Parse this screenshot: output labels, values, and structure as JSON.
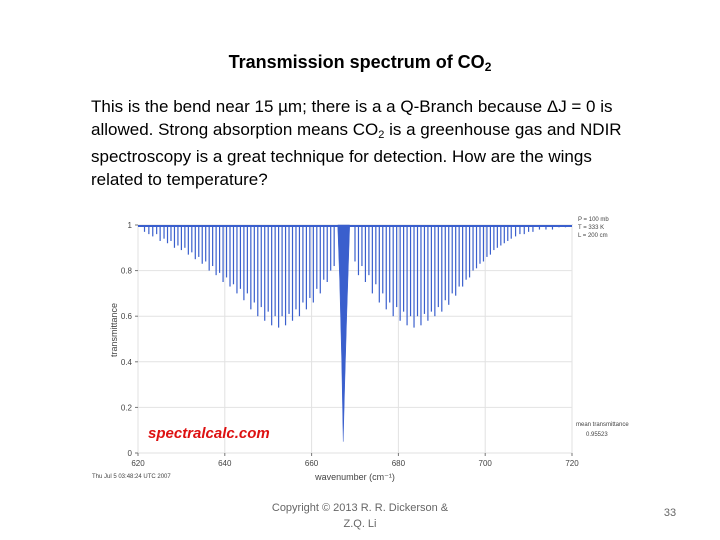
{
  "slide": {
    "title_main": "Transmission spectrum of CO",
    "title_sub": "2",
    "para_1": "This is the bend near 15 ",
    "mu": "µ",
    "para_2": "m; there is a a Q-Branch because ",
    "delta": "Δ",
    "para_3": "J = 0 is allowed.  Strong absorption means CO",
    "para_sub": "2",
    "para_4": " is a greenhouse gas and NDIR spectroscopy is a great technique for detection.  How are the wings related to temperature?",
    "footer_line1": "Copyright © 2013  R. R. Dickerson &",
    "footer_line2": "Z.Q. Li",
    "page_number": "33"
  },
  "chart_data": {
    "type": "line",
    "xlabel": "wavenumber (cm⁻¹)",
    "ylabel": "transmittance",
    "xlim": [
      620,
      720
    ],
    "ylim": [
      0,
      1
    ],
    "xticks": [
      620,
      640,
      660,
      680,
      700,
      720
    ],
    "yticks": [
      0,
      0.2,
      0.4,
      0.6,
      0.8,
      1
    ],
    "xtick_labels": [
      "620",
      "640",
      "660",
      "680",
      "700",
      "720"
    ],
    "ytick_labels": [
      "0",
      "0.2",
      "0.4",
      "0.6",
      "0.8",
      "1"
    ],
    "line_color": "#3a5fcd",
    "watermark": "spectralcalc.com",
    "watermark_color": "#dd1111",
    "params": [
      "P = 100 mb",
      "T = 333 K",
      "L = 200 cm"
    ],
    "mean_label_1": "mean transmittance",
    "mean_label_2": "0.95523",
    "timestamp": "Thu Jul  5 03:48:24 UTC 2007",
    "q_branch": {
      "x": 667.4,
      "min_y": 0.05
    },
    "lines": [
      {
        "x": 621.5,
        "y": 0.97
      },
      {
        "x": 622.5,
        "y": 0.96
      },
      {
        "x": 623.4,
        "y": 0.95
      },
      {
        "x": 624.3,
        "y": 0.96
      },
      {
        "x": 625.1,
        "y": 0.93
      },
      {
        "x": 626.0,
        "y": 0.94
      },
      {
        "x": 626.8,
        "y": 0.92
      },
      {
        "x": 627.6,
        "y": 0.93
      },
      {
        "x": 628.4,
        "y": 0.9
      },
      {
        "x": 629.2,
        "y": 0.91
      },
      {
        "x": 630.0,
        "y": 0.89
      },
      {
        "x": 630.8,
        "y": 0.9
      },
      {
        "x": 631.6,
        "y": 0.87
      },
      {
        "x": 632.4,
        "y": 0.88
      },
      {
        "x": 633.2,
        "y": 0.85
      },
      {
        "x": 634.0,
        "y": 0.86
      },
      {
        "x": 634.8,
        "y": 0.83
      },
      {
        "x": 635.6,
        "y": 0.84
      },
      {
        "x": 636.4,
        "y": 0.8
      },
      {
        "x": 637.2,
        "y": 0.82
      },
      {
        "x": 638.0,
        "y": 0.78
      },
      {
        "x": 638.8,
        "y": 0.79
      },
      {
        "x": 639.6,
        "y": 0.75
      },
      {
        "x": 640.4,
        "y": 0.77
      },
      {
        "x": 641.2,
        "y": 0.73
      },
      {
        "x": 642.0,
        "y": 0.74
      },
      {
        "x": 642.8,
        "y": 0.7
      },
      {
        "x": 643.6,
        "y": 0.72
      },
      {
        "x": 644.4,
        "y": 0.67
      },
      {
        "x": 645.2,
        "y": 0.7
      },
      {
        "x": 646.0,
        "y": 0.63
      },
      {
        "x": 646.8,
        "y": 0.66
      },
      {
        "x": 647.6,
        "y": 0.6
      },
      {
        "x": 648.4,
        "y": 0.64
      },
      {
        "x": 649.2,
        "y": 0.58
      },
      {
        "x": 650.0,
        "y": 0.62
      },
      {
        "x": 650.8,
        "y": 0.56
      },
      {
        "x": 651.6,
        "y": 0.6
      },
      {
        "x": 652.4,
        "y": 0.55
      },
      {
        "x": 653.2,
        "y": 0.6
      },
      {
        "x": 654.0,
        "y": 0.56
      },
      {
        "x": 654.8,
        "y": 0.61
      },
      {
        "x": 655.6,
        "y": 0.58
      },
      {
        "x": 656.4,
        "y": 0.63
      },
      {
        "x": 657.2,
        "y": 0.6
      },
      {
        "x": 658.0,
        "y": 0.66
      },
      {
        "x": 658.8,
        "y": 0.63
      },
      {
        "x": 659.6,
        "y": 0.68
      },
      {
        "x": 660.4,
        "y": 0.66
      },
      {
        "x": 661.2,
        "y": 0.72
      },
      {
        "x": 662.0,
        "y": 0.7
      },
      {
        "x": 662.8,
        "y": 0.76
      },
      {
        "x": 663.6,
        "y": 0.75
      },
      {
        "x": 664.4,
        "y": 0.8
      },
      {
        "x": 665.2,
        "y": 0.82
      },
      {
        "x": 670.0,
        "y": 0.84
      },
      {
        "x": 670.8,
        "y": 0.78
      },
      {
        "x": 671.6,
        "y": 0.82
      },
      {
        "x": 672.4,
        "y": 0.75
      },
      {
        "x": 673.2,
        "y": 0.78
      },
      {
        "x": 674.0,
        "y": 0.7
      },
      {
        "x": 674.8,
        "y": 0.74
      },
      {
        "x": 675.6,
        "y": 0.66
      },
      {
        "x": 676.4,
        "y": 0.7
      },
      {
        "x": 677.2,
        "y": 0.63
      },
      {
        "x": 678.0,
        "y": 0.66
      },
      {
        "x": 678.8,
        "y": 0.6
      },
      {
        "x": 679.6,
        "y": 0.64
      },
      {
        "x": 680.4,
        "y": 0.58
      },
      {
        "x": 681.2,
        "y": 0.62
      },
      {
        "x": 682.0,
        "y": 0.56
      },
      {
        "x": 682.8,
        "y": 0.6
      },
      {
        "x": 683.6,
        "y": 0.55
      },
      {
        "x": 684.4,
        "y": 0.6
      },
      {
        "x": 685.2,
        "y": 0.56
      },
      {
        "x": 686.0,
        "y": 0.61
      },
      {
        "x": 686.8,
        "y": 0.58
      },
      {
        "x": 687.6,
        "y": 0.62
      },
      {
        "x": 688.4,
        "y": 0.6
      },
      {
        "x": 689.2,
        "y": 0.64
      },
      {
        "x": 690.0,
        "y": 0.62
      },
      {
        "x": 690.8,
        "y": 0.67
      },
      {
        "x": 691.6,
        "y": 0.65
      },
      {
        "x": 692.4,
        "y": 0.7
      },
      {
        "x": 693.2,
        "y": 0.69
      },
      {
        "x": 694.0,
        "y": 0.73
      },
      {
        "x": 694.8,
        "y": 0.73
      },
      {
        "x": 695.6,
        "y": 0.76
      },
      {
        "x": 696.4,
        "y": 0.77
      },
      {
        "x": 697.2,
        "y": 0.8
      },
      {
        "x": 698.0,
        "y": 0.81
      },
      {
        "x": 698.8,
        "y": 0.83
      },
      {
        "x": 699.6,
        "y": 0.84
      },
      {
        "x": 700.4,
        "y": 0.86
      },
      {
        "x": 701.2,
        "y": 0.87
      },
      {
        "x": 702.0,
        "y": 0.89
      },
      {
        "x": 702.8,
        "y": 0.9
      },
      {
        "x": 703.6,
        "y": 0.91
      },
      {
        "x": 704.4,
        "y": 0.92
      },
      {
        "x": 705.2,
        "y": 0.93
      },
      {
        "x": 706.0,
        "y": 0.94
      },
      {
        "x": 707.0,
        "y": 0.95
      },
      {
        "x": 708.0,
        "y": 0.96
      },
      {
        "x": 709.0,
        "y": 0.96
      },
      {
        "x": 710.0,
        "y": 0.97
      },
      {
        "x": 711.0,
        "y": 0.97
      },
      {
        "x": 712.5,
        "y": 0.98
      },
      {
        "x": 714.0,
        "y": 0.98
      },
      {
        "x": 715.5,
        "y": 0.98
      },
      {
        "x": 717.0,
        "y": 0.99
      },
      {
        "x": 718.5,
        "y": 0.99
      }
    ]
  }
}
